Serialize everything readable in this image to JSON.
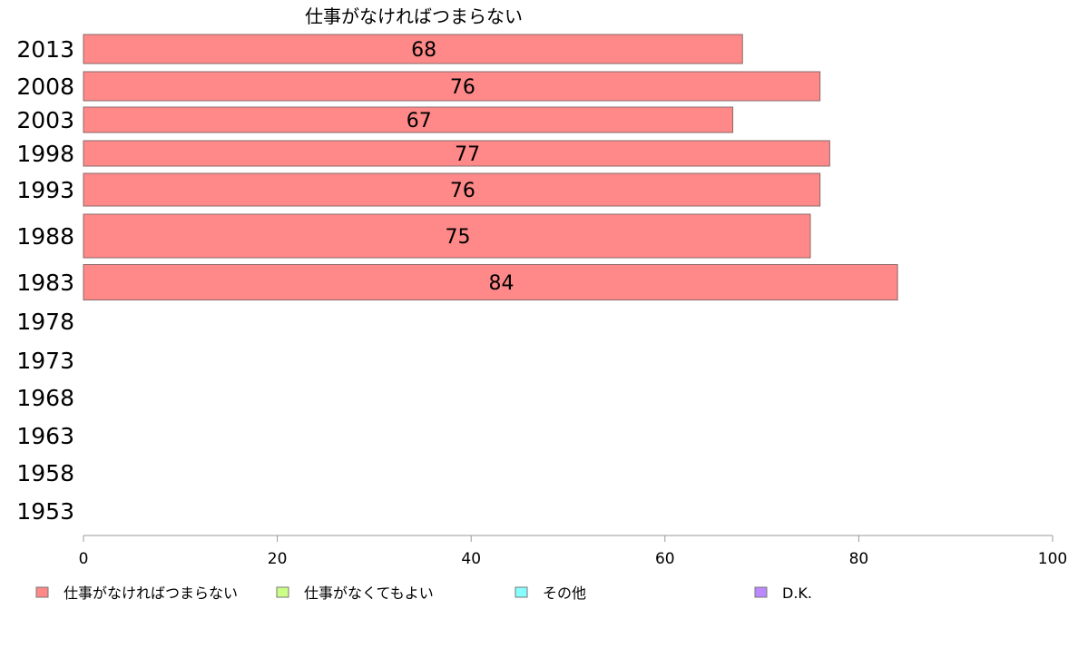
{
  "chart_data": {
    "type": "bar",
    "orientation": "horizontal",
    "title": "仕事がなければつまらない",
    "categories": [
      "2013",
      "2008",
      "2003",
      "1998",
      "1993",
      "1988",
      "1983",
      "1978",
      "1973",
      "1968",
      "1963",
      "1958",
      "1953"
    ],
    "series": [
      {
        "name": "仕事がなければつまらない",
        "color": "#FF8888",
        "values": [
          68,
          76,
          67,
          77,
          76,
          75,
          84,
          null,
          null,
          null,
          null,
          null,
          null
        ]
      },
      {
        "name": "仕事がなくてもよい",
        "color": "#CCFF88",
        "values": [
          null,
          null,
          null,
          null,
          null,
          null,
          null,
          null,
          null,
          null,
          null,
          null,
          null
        ]
      },
      {
        "name": "その他",
        "color": "#88FFFF",
        "values": [
          null,
          null,
          null,
          null,
          null,
          null,
          null,
          null,
          null,
          null,
          null,
          null,
          null
        ]
      },
      {
        "name": "D.K.",
        "color": "#BB88FF",
        "values": [
          null,
          null,
          null,
          null,
          null,
          null,
          null,
          null,
          null,
          null,
          null,
          null,
          null
        ]
      }
    ],
    "xlim": [
      0,
      100
    ],
    "xticks": [
      0,
      20,
      40,
      60,
      80,
      100
    ],
    "grid": false,
    "legend_position": "bottom"
  }
}
